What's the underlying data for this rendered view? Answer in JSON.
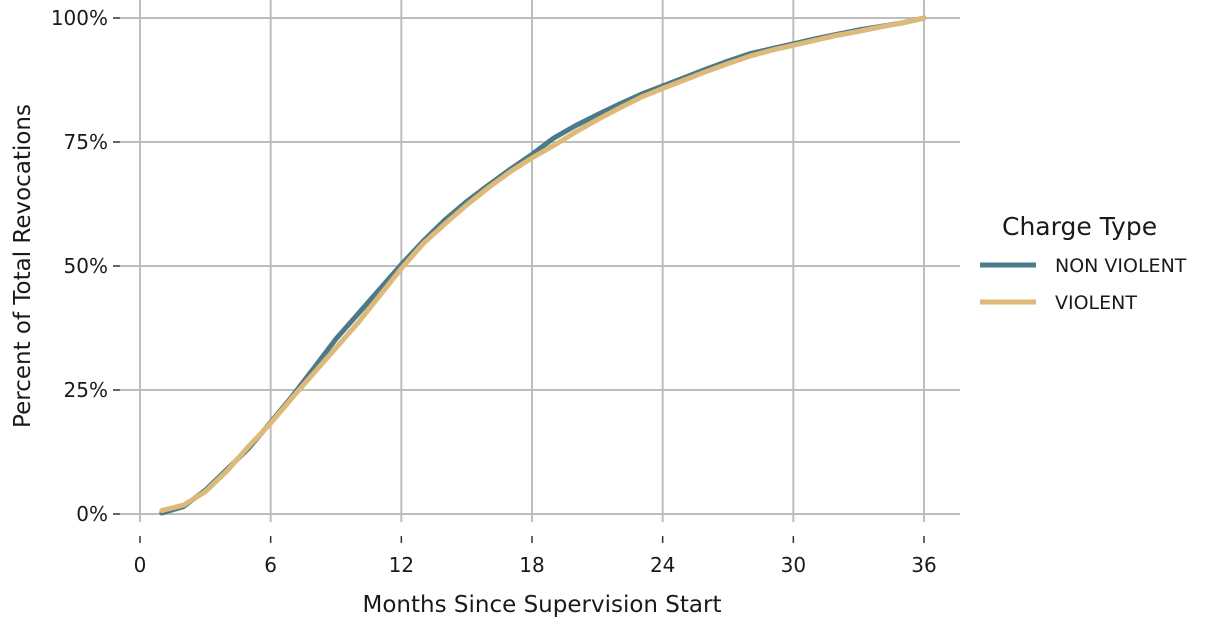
{
  "chart_data": {
    "type": "line",
    "xlabel": "Months Since Supervision Start",
    "ylabel": "Percent of Total Revocations",
    "xlim": [
      0,
      36
    ],
    "ylim": [
      0,
      100
    ],
    "x_ticks": [
      0,
      6,
      12,
      18,
      24,
      30,
      36
    ],
    "y_ticks": [
      0,
      25,
      50,
      75,
      100
    ],
    "y_tick_labels": [
      "0%",
      "25%",
      "50%",
      "75%",
      "100%"
    ],
    "grid": true,
    "legend": {
      "title": "Charge Type",
      "placement": "right"
    },
    "x": [
      1,
      2,
      3,
      4,
      5,
      6,
      7,
      8,
      9,
      10,
      11,
      12,
      13,
      14,
      15,
      16,
      17,
      18,
      19,
      20,
      21,
      22,
      23,
      24,
      25,
      26,
      27,
      28,
      29,
      30,
      31,
      32,
      33,
      34,
      35,
      36
    ],
    "series": [
      {
        "name": "NON VIOLENT",
        "color": "#4d7a89",
        "values": [
          0.2,
          1.5,
          4.8,
          9.0,
          13.3,
          18.5,
          23.8,
          29.5,
          35.3,
          40.3,
          45.3,
          50.3,
          55.0,
          59.3,
          63.0,
          66.3,
          69.5,
          72.5,
          75.8,
          78.3,
          80.5,
          82.6,
          84.6,
          86.3,
          88.0,
          89.7,
          91.3,
          92.8,
          93.8,
          94.8,
          95.8,
          96.7,
          97.6,
          98.3,
          99.0,
          100.0
        ]
      },
      {
        "name": "VIOLENT",
        "color": "#ddb97a",
        "values": [
          0.7,
          1.8,
          4.5,
          8.7,
          13.7,
          18.3,
          23.5,
          28.5,
          33.5,
          38.5,
          44.0,
          49.5,
          54.5,
          58.5,
          62.3,
          65.8,
          69.0,
          71.8,
          74.3,
          77.0,
          79.5,
          81.8,
          84.0,
          85.8,
          87.5,
          89.2,
          90.8,
          92.3,
          93.5,
          94.5,
          95.5,
          96.5,
          97.3,
          98.2,
          99.0,
          100.0
        ]
      }
    ]
  }
}
